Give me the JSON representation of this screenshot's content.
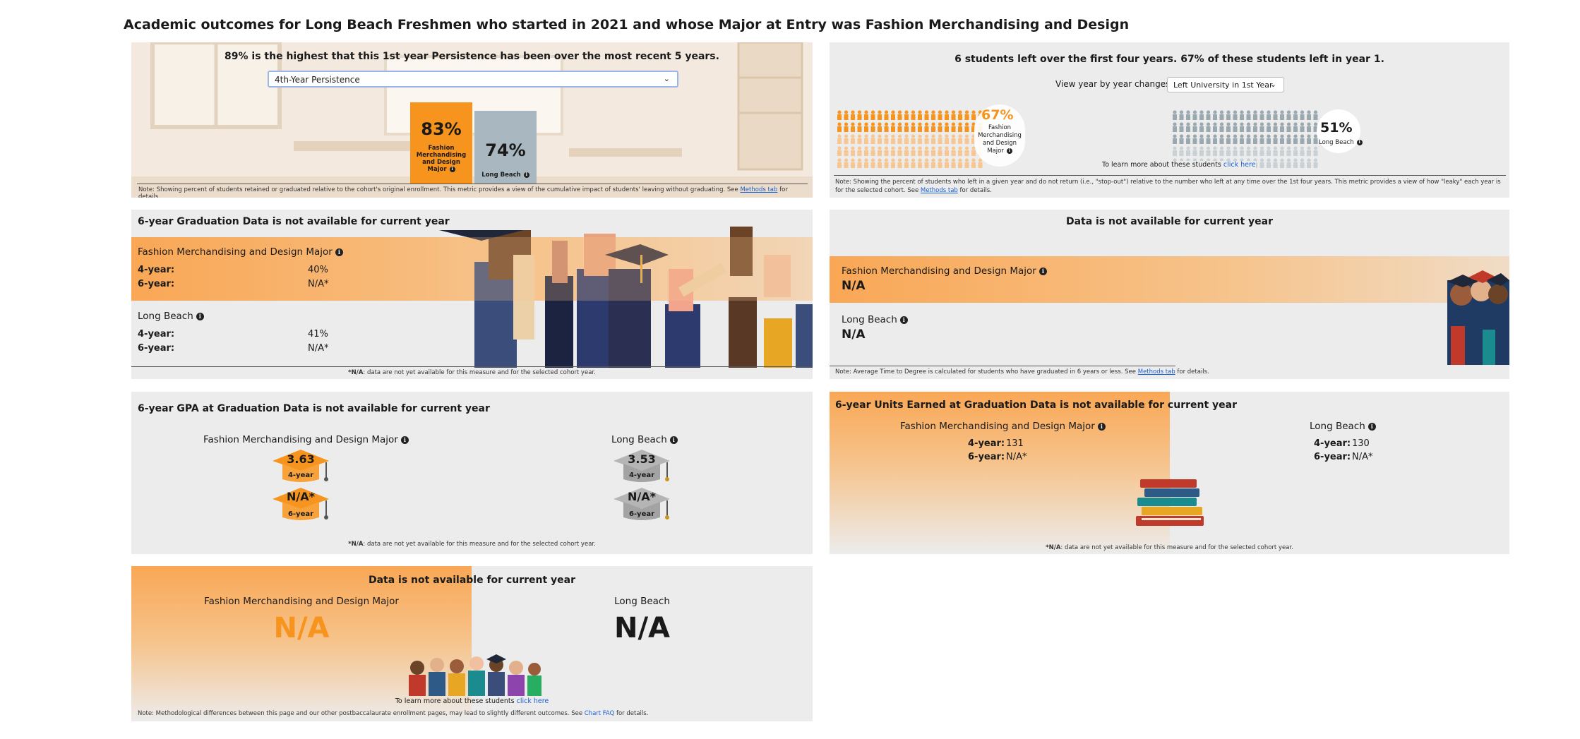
{
  "page_title": "Academic outcomes for Long Beach Freshmen who started in 2021 and whose Major at Entry was Fashion Merchandising and Design",
  "persistence": {
    "headline": "89% is the highest that this 1st year Persistence has been over the most recent 5 years.",
    "dropdown_value": "4th-Year Persistence",
    "major_value": "83%",
    "major_label": "Fashion Merchandising and Design Major",
    "major_fraction": 0.83,
    "campus_value": "74%",
    "campus_label": "Long Beach",
    "campus_fraction": 0.74,
    "note_prefix": "Note: Showing percent of students retained or graduated relative to the cohort's original enrollment. This metric provides a view of the cumulative impact of students' leaving without graduating. See",
    "note_link": "Methods tab",
    "note_suffix": "for details.",
    "colors": {
      "major": "#f7941d",
      "campus": "#a9b8c0"
    }
  },
  "leavers": {
    "headline": "6 students left over the first four years. 67% of these students left in year 1.",
    "dropdown_label": "View year by year changes:",
    "dropdown_value": "Left University in 1st Year",
    "major_pct": "67%",
    "major_label": "Fashion Merchandising and Design Major",
    "campus_pct": "51%",
    "campus_label": "Long Beach",
    "learn_more": "To learn more about these students",
    "learn_link": "click here",
    "note_prefix": "Note: Showing the percent of students who left in a given year and do not return (i.e., \"stop-out\") relative to the number who left at any time over the 1st four years. This metric provides a view of how \"leaky\" each year is for the selected cohort. See",
    "note_link": "Methods tab",
    "note_suffix": "for details."
  },
  "graduation": {
    "title": "6-year Graduation Data is not available for current year",
    "major_label": "Fashion Merchandising and Design Major",
    "major_4yr_label": "4-year:",
    "major_4yr": "40%",
    "major_6yr_label": "6-year:",
    "major_6yr": "N/A*",
    "campus_label": "Long Beach",
    "campus_4yr_label": "4-year:",
    "campus_4yr": "41%",
    "campus_6yr_label": "6-year:",
    "campus_6yr": "N/A*",
    "footnote_bold": "*N/A",
    "footnote": ": data are not yet available for this measure and for the selected cohort year."
  },
  "time_to_degree": {
    "title": "Data is not available for current year",
    "major_label": "Fashion Merchandising and Design Major",
    "major_value": "N/A",
    "campus_label": "Long Beach",
    "campus_value": "N/A",
    "note_prefix": "Note: Average Time to Degree is calculated for students who have graduated in 6 years or less. See",
    "note_link": "Methods tab",
    "note_suffix": "for details."
  },
  "gpa": {
    "title": "6-year GPA at Graduation Data is not available for current year",
    "major_label": "Fashion Merchandising and Design Major",
    "major_4yr": "3.63",
    "major_6yr": "N/A*",
    "campus_label": "Long Beach",
    "campus_4yr": "3.53",
    "campus_6yr": "N/A*",
    "cap_4yr_label": "4-year",
    "cap_6yr_label": "6-year",
    "footnote_bold": "*N/A",
    "footnote": ": data are not yet available for this measure and for the selected cohort year."
  },
  "units": {
    "title": "6-year Units Earned at Graduation Data is not available for current year",
    "major_label": "Fashion Merchandising and Design Major",
    "major_4yr_label": "4-year:",
    "major_4yr": "131",
    "major_6yr_label": "6-year:",
    "major_6yr": "N/A*",
    "campus_label": "Long Beach",
    "campus_4yr_label": "4-year:",
    "campus_4yr": "130",
    "campus_6yr_label": "6-year:",
    "campus_6yr": "N/A*",
    "footnote_bold": "*N/A",
    "footnote": ": data are not yet available for this measure and for the selected cohort year."
  },
  "postbacc": {
    "title": "Data is not available for current year",
    "major_label": "Fashion Merchandising and Design Major",
    "major_value": "N/A",
    "campus_label": "Long Beach",
    "campus_value": "N/A",
    "learn_more": "To learn more about these students",
    "learn_link": "click here",
    "note_prefix": "Note: Methodological differences between this page and our other postbaccalaurate enrollment pages, may lead to slightly different outcomes. See",
    "note_link": "Chart FAQ",
    "note_suffix": "for details."
  }
}
